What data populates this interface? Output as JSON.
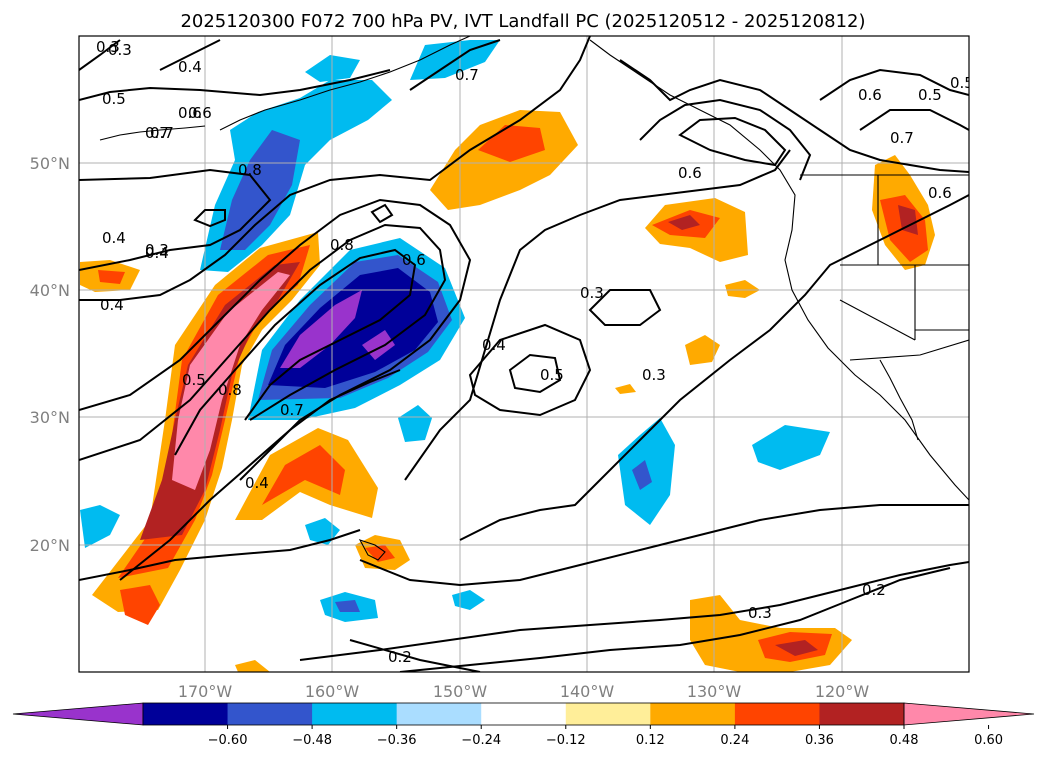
{
  "title": "2025120300 F072 700 hPa PV, IVT Landfall PC (2025120512 - 2025120812)",
  "map": {
    "lon_labels": [
      "170°W",
      "160°W",
      "150°W",
      "140°W",
      "130°W",
      "120°W"
    ],
    "lat_labels": [
      "50°N",
      "40°N",
      "30°N",
      "20°N"
    ],
    "gridlines": true,
    "fill_field": "IVT Landfall PC",
    "contour_field": "700 hPa PV",
    "contour_labels": [
      "0.3",
      "0.4",
      "0.5",
      "0.6",
      "0.7",
      "0.8",
      "0.6",
      "0.4",
      "0.3",
      "0.4",
      "0.7",
      "0.5",
      "0.6",
      "0.6",
      "0.7",
      "0.6",
      "0.5",
      "0.7",
      "0.8",
      "0.3",
      "0.4",
      "0.5",
      "0.8",
      "0.7",
      "0.4",
      "0.6",
      "0.3",
      "0.4",
      "0.5",
      "0.3",
      "0.3",
      "0.2",
      "0.2"
    ]
  },
  "colorbar": {
    "ticks": [
      "−0.60",
      "−0.48",
      "−0.36",
      "−0.24",
      "−0.12",
      "0.12",
      "0.24",
      "0.36",
      "0.48",
      "0.60"
    ],
    "colors": [
      "#9933cc",
      "#000099",
      "#3355cc",
      "#00bbf0",
      "#aaddff",
      "#ffffff",
      "#ffee99",
      "#ffaa00",
      "#ff4400",
      "#b22222",
      "#ff88aa"
    ],
    "extend": "both"
  }
}
